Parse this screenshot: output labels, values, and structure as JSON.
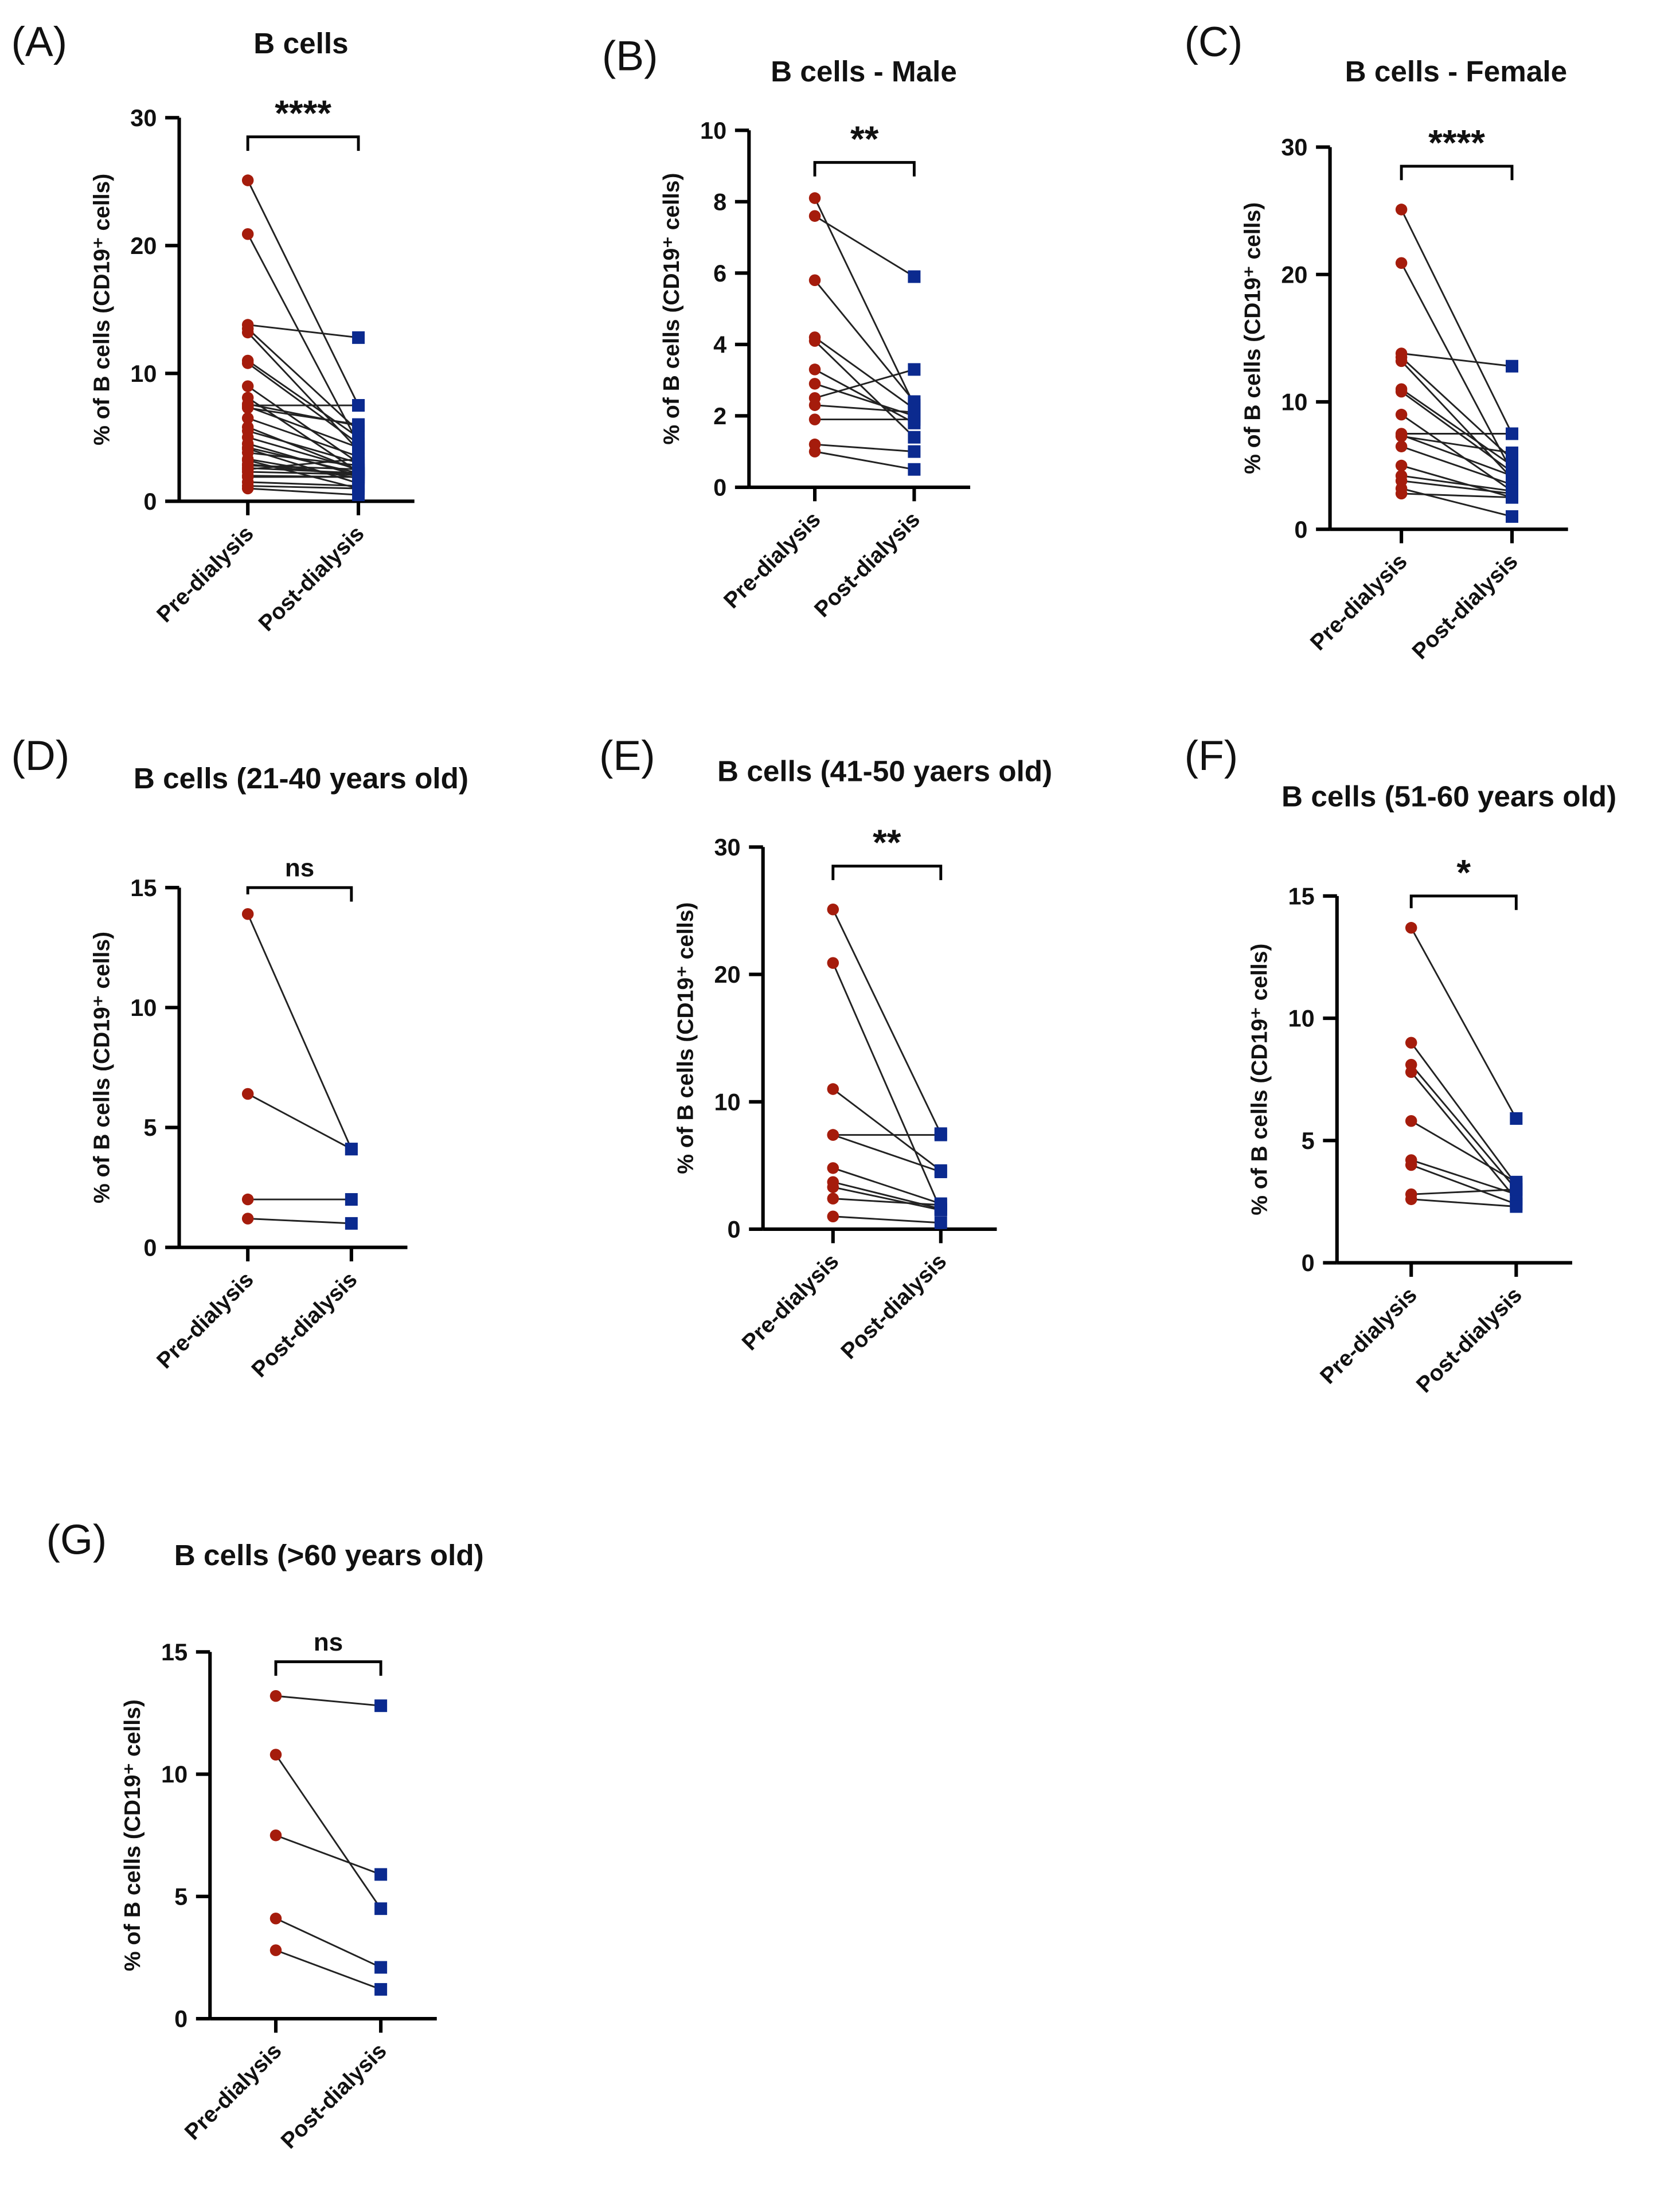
{
  "colors": {
    "pre": "#a51c0c",
    "post": "#0b2a8f",
    "line": "#222222",
    "axis": "#000000"
  },
  "chart_data": [
    {
      "id": "A",
      "type": "line",
      "panel_label": "(A)",
      "title": "B cells",
      "ylabel": "% of B cells (CD19⁺ cells)",
      "categories": [
        "Pre-dialysis",
        "Post-dialysis"
      ],
      "ylim": [
        0,
        30
      ],
      "yticks": [
        0,
        10,
        20,
        30
      ],
      "significance": "****",
      "bracket_level": 28.5,
      "pairs": [
        [
          25.1,
          7.5
        ],
        [
          20.9,
          4.5
        ],
        [
          13.8,
          12.8
        ],
        [
          13.5,
          5.5
        ],
        [
          13.2,
          4.0
        ],
        [
          11.0,
          5.0
        ],
        [
          10.8,
          4.5
        ],
        [
          9.0,
          3.0
        ],
        [
          8.1,
          2.3
        ],
        [
          7.6,
          5.9
        ],
        [
          7.5,
          7.5
        ],
        [
          7.4,
          4.2
        ],
        [
          7.3,
          6.0
        ],
        [
          6.5,
          3.5
        ],
        [
          5.8,
          2.4
        ],
        [
          5.5,
          3.0
        ],
        [
          5.0,
          2.5
        ],
        [
          4.5,
          2.0
        ],
        [
          4.2,
          2.2
        ],
        [
          4.1,
          1.4
        ],
        [
          3.8,
          2.8
        ],
        [
          3.3,
          1.8
        ],
        [
          3.2,
          1.0
        ],
        [
          2.9,
          2.0
        ],
        [
          2.8,
          2.5
        ],
        [
          2.6,
          2.2
        ],
        [
          2.5,
          3.3
        ],
        [
          2.3,
          2.1
        ],
        [
          2.0,
          1.9
        ],
        [
          1.9,
          1.9
        ],
        [
          1.5,
          1.2
        ],
        [
          1.2,
          1.0
        ],
        [
          1.0,
          0.5
        ]
      ]
    },
    {
      "id": "B",
      "type": "line",
      "panel_label": "(B)",
      "title": "B cells - Male",
      "ylabel": "% of B cells (CD19⁺ cells)",
      "categories": [
        "Pre-dialysis",
        "Post-dialysis"
      ],
      "ylim": [
        0,
        10
      ],
      "yticks": [
        0,
        2,
        4,
        6,
        8,
        10
      ],
      "significance": "**",
      "bracket_level": 9.1,
      "pairs": [
        [
          8.1,
          2.3
        ],
        [
          7.6,
          5.9
        ],
        [
          5.8,
          2.4
        ],
        [
          4.2,
          2.2
        ],
        [
          4.1,
          1.4
        ],
        [
          3.3,
          1.8
        ],
        [
          2.9,
          2.0
        ],
        [
          2.5,
          3.3
        ],
        [
          2.3,
          2.1
        ],
        [
          1.9,
          1.9
        ],
        [
          1.2,
          1.0
        ],
        [
          1.0,
          0.5
        ]
      ]
    },
    {
      "id": "C",
      "type": "line",
      "panel_label": "(C)",
      "title": "B cells - Female",
      "ylabel": "% of B cells (CD19⁺ cells)",
      "categories": [
        "Pre-dialysis",
        "Post-dialysis"
      ],
      "ylim": [
        0,
        30
      ],
      "yticks": [
        0,
        10,
        20,
        30
      ],
      "significance": "****",
      "bracket_level": 28.5,
      "pairs": [
        [
          25.1,
          7.5
        ],
        [
          20.9,
          4.5
        ],
        [
          13.8,
          12.8
        ],
        [
          13.5,
          5.5
        ],
        [
          13.2,
          4.0
        ],
        [
          11.0,
          5.0
        ],
        [
          10.8,
          4.5
        ],
        [
          9.0,
          3.0
        ],
        [
          7.5,
          7.5
        ],
        [
          7.4,
          4.2
        ],
        [
          7.3,
          6.0
        ],
        [
          6.5,
          3.5
        ],
        [
          5.0,
          2.5
        ],
        [
          4.2,
          3.0
        ],
        [
          3.8,
          2.8
        ],
        [
          3.2,
          1.0
        ],
        [
          2.8,
          2.5
        ]
      ]
    },
    {
      "id": "D",
      "type": "line",
      "panel_label": "(D)",
      "title": "B cells (21-40 years old)",
      "ylabel": "% of B cells (CD19⁺ cells)",
      "categories": [
        "Pre-dialysis",
        "Post-dialysis"
      ],
      "ylim": [
        0,
        15
      ],
      "yticks": [
        0,
        5,
        10,
        15
      ],
      "significance": "ns",
      "bracket_level": 15,
      "pairs": [
        [
          13.9,
          4.1
        ],
        [
          6.4,
          4.1
        ],
        [
          2.0,
          2.0
        ],
        [
          1.2,
          1.0
        ]
      ]
    },
    {
      "id": "E",
      "type": "line",
      "panel_label": "(E)",
      "title": "B cells (41-50 yaers old)",
      "ylabel": "% of B cells (CD19⁺ cells)",
      "categories": [
        "Pre-dialysis",
        "Post-dialysis"
      ],
      "ylim": [
        0,
        30
      ],
      "yticks": [
        0,
        10,
        20,
        30
      ],
      "significance": "**",
      "bracket_level": 28.5,
      "pairs": [
        [
          25.1,
          7.5
        ],
        [
          20.9,
          1.5
        ],
        [
          11.0,
          4.6
        ],
        [
          7.4,
          7.4
        ],
        [
          7.4,
          4.5
        ],
        [
          4.8,
          2.0
        ],
        [
          3.7,
          1.6
        ],
        [
          3.3,
          1.5
        ],
        [
          2.4,
          1.9
        ],
        [
          1.0,
          0.5
        ]
      ]
    },
    {
      "id": "F",
      "type": "line",
      "panel_label": "(F)",
      "title": "B cells (51-60 years old)",
      "ylabel": "% of B cells (CD19⁺ cells)",
      "categories": [
        "Pre-dialysis",
        "Post-dialysis"
      ],
      "ylim": [
        0,
        15
      ],
      "yticks": [
        0,
        5,
        10,
        15
      ],
      "significance": "*",
      "bracket_level": 15,
      "pairs": [
        [
          13.7,
          5.9
        ],
        [
          9.0,
          3.2
        ],
        [
          8.1,
          3.0
        ],
        [
          7.8,
          2.6
        ],
        [
          5.8,
          3.3
        ],
        [
          4.2,
          2.8
        ],
        [
          4.0,
          2.4
        ],
        [
          2.8,
          3.0
        ],
        [
          2.6,
          2.3
        ]
      ]
    },
    {
      "id": "G",
      "type": "line",
      "panel_label": "(G)",
      "title": "B cells (>60 years old)",
      "ylabel": "% of B cells (CD19⁺ cells)",
      "categories": [
        "Pre-dialysis",
        "Post-dialysis"
      ],
      "ylim": [
        0,
        15
      ],
      "yticks": [
        0,
        5,
        10,
        15
      ],
      "significance": "ns",
      "bracket_level": 14.6,
      "pairs": [
        [
          13.2,
          12.8
        ],
        [
          10.8,
          4.5
        ],
        [
          7.5,
          5.9
        ],
        [
          4.1,
          2.1
        ],
        [
          2.8,
          1.2
        ]
      ]
    }
  ]
}
